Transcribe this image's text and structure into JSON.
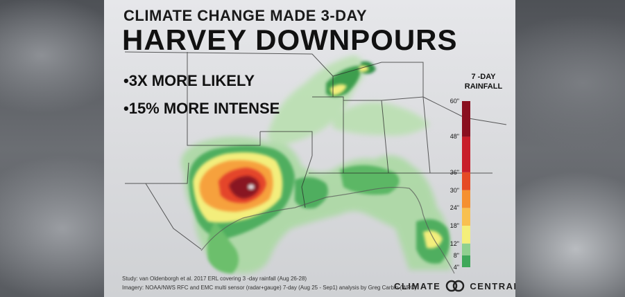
{
  "title_line1": "CLIMATE CHANGE MADE 3-DAY",
  "title_line2": "HARVEY DOWNPOURS",
  "bullets": [
    "•3X MORE LIKELY",
    "•15% MORE INTENSE"
  ],
  "legend": {
    "title_line1": "7 -DAY",
    "title_line2": "RAINFALL",
    "ticks": [
      {
        "label": "60\"",
        "value": 60
      },
      {
        "label": "48\"",
        "value": 48
      },
      {
        "label": "36\"",
        "value": 36
      },
      {
        "label": "30\"",
        "value": 30
      },
      {
        "label": "24\"",
        "value": 24
      },
      {
        "label": "18\"",
        "value": 18
      },
      {
        "label": "12\"",
        "value": 12
      },
      {
        "label": "8\"",
        "value": 8
      },
      {
        "label": "4\"",
        "value": 4
      }
    ],
    "colors": [
      "#0f7a3a",
      "#3fa85a",
      "#8fd08f",
      "#f4ef7a",
      "#f8c050",
      "#f59030",
      "#e54a25",
      "#c81e2a",
      "#8a0f1f",
      "#5a0714"
    ]
  },
  "credits": {
    "line1": "Study: van Oldenborgh et al. 2017 ERL covering 3 -day rainfall (Aug 26-28)",
    "line2": "Imagery: NOAA/NWS RFC and EMC multi sensor (radar+gauge) 7-day (Aug 25 - Sep1) analysis by Greg Carbin (WPC)"
  },
  "logo": {
    "text": "CLIMATE",
    "text2": "CENTRAL"
  }
}
